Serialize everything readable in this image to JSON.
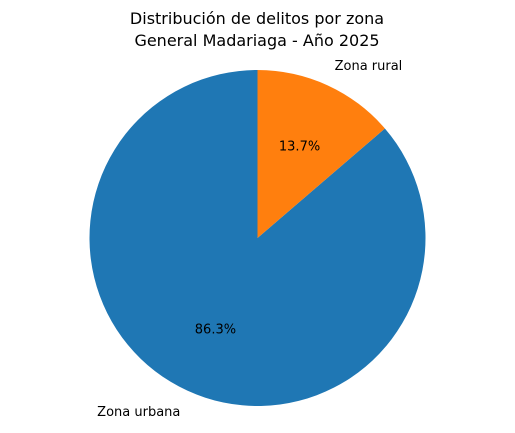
{
  "chart_data": {
    "type": "pie",
    "title": [
      "Distribución de delitos por zona",
      "General Madariaga - Año 2025"
    ],
    "categories": [
      "Zona urbana",
      "Zona rural"
    ],
    "values": [
      86.3,
      13.7
    ],
    "value_labels": [
      "86.3%",
      "13.7%"
    ],
    "colors": [
      "#1f77b4",
      "#ff7f0e"
    ],
    "start_angle_deg": 90,
    "direction": "counterclockwise"
  }
}
